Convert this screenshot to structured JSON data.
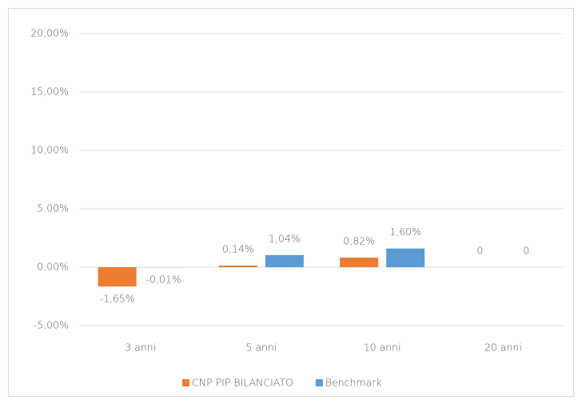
{
  "chart_data": {
    "type": "bar",
    "categories": [
      "3 anni",
      "5 anni",
      "10 anni",
      "20 anni"
    ],
    "series": [
      {
        "name": "CNP PIP BILANCIATO",
        "color": "#ed7d31",
        "values": [
          -1.65,
          0.14,
          0.82,
          0
        ],
        "value_labels": [
          "-1,65%",
          "0,14%",
          "0,82%",
          "0"
        ]
      },
      {
        "name": "Benchmark",
        "color": "#5b9bd5",
        "values": [
          -0.01,
          1.04,
          1.6,
          0
        ],
        "value_labels": [
          "-0,01%",
          "1,04%",
          "1,60%",
          "0"
        ]
      }
    ],
    "ylim": [
      -5,
      20
    ],
    "yticks": [
      {
        "value": -5,
        "label": "-5,00%"
      },
      {
        "value": 0,
        "label": "0,00%"
      },
      {
        "value": 5,
        "label": "5,00%"
      },
      {
        "value": 10,
        "label": "10,00%"
      },
      {
        "value": 15,
        "label": "15,00%"
      },
      {
        "value": 20,
        "label": "20,00%"
      }
    ],
    "grid": true,
    "legend": "bottom"
  }
}
